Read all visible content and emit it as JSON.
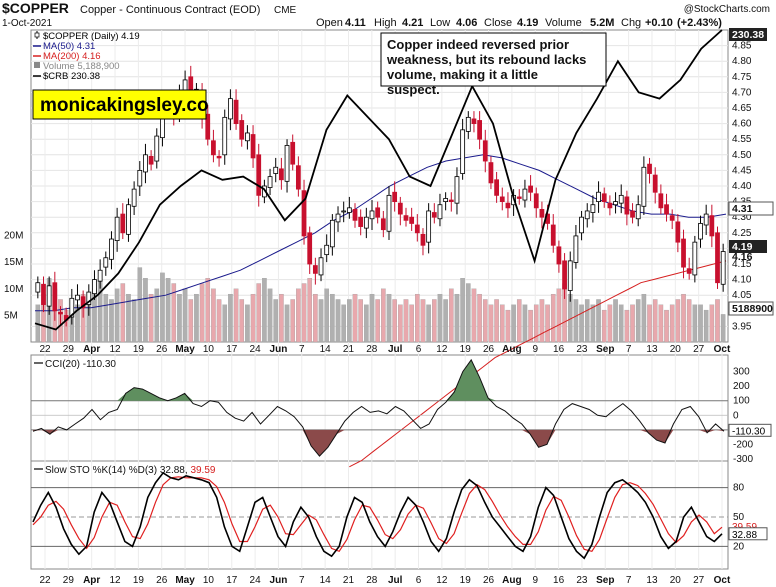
{
  "header": {
    "symbol": "$COPPER",
    "name": "Copper - Continuous Contract (EOD)",
    "exchange": "CME",
    "date": "1-Oct-2021",
    "watermark": "@StockCharts.com",
    "quote": {
      "open_label": "Open",
      "open": "4.11",
      "high_label": "High",
      "high": "4.21",
      "low_label": "Low",
      "low": "4.06",
      "close_label": "Close",
      "close": "4.19",
      "volume_label": "Volume",
      "volume": "5.2M",
      "chg_label": "Chg",
      "chg": "+0.10",
      "chg_pct": "(+2.43%)"
    }
  },
  "legend": [
    {
      "text": "$COPPER (Daily) 4.19",
      "color": "#000000",
      "marker": "candle"
    },
    {
      "text": "MA(50) 4.31",
      "color": "#1a1a8c",
      "marker": "line"
    },
    {
      "text": "MA(200) 4.16",
      "color": "#d62020",
      "marker": "line"
    },
    {
      "text": "Volume 5,188,900",
      "color": "#888888",
      "marker": "bar"
    },
    {
      "text": "$CRB 230.38",
      "color": "#000000",
      "marker": "line"
    }
  ],
  "brand_box": "monicakingsley.co",
  "annotation": "Copper indeed reversed prior weakness, but its rebound lacks volume, making it a little suspect.",
  "colors": {
    "up": "#ffffff",
    "down": "#c8102e",
    "ma50": "#1a1a8c",
    "ma200": "#d62020",
    "crb": "#000000",
    "vol_up": "#b0b0b0",
    "vol_down": "#e8a8ad",
    "cci_fill_pos": "#5f8f5f",
    "cci_fill_neg": "#8b4a4a",
    "sto_k": "#000000",
    "sto_d": "#e02020",
    "brand_bg": "#ffff00"
  },
  "x_labels": [
    "22",
    "29",
    "Apr",
    "12",
    "19",
    "26",
    "May",
    "10",
    "17",
    "24",
    "Jun",
    "7",
    "14",
    "21",
    "28",
    "Jul",
    "6",
    "12",
    "19",
    "26",
    "Aug",
    "9",
    "16",
    "23",
    "Sep",
    "7",
    "13",
    "20",
    "27",
    "Oct"
  ],
  "chart_data": [
    {
      "type": "candlestick",
      "title": "$COPPER (Daily) 4.19",
      "ylim": [
        3.9,
        4.9
      ],
      "y_ticks": [
        "3.95",
        "4.05",
        "4.10",
        "4.15",
        "4.20",
        "4.25",
        "4.30",
        "4.35",
        "4.40",
        "4.45",
        "4.50",
        "4.55",
        "4.60",
        "4.65",
        "4.70",
        "4.75",
        "4.80",
        "4.85"
      ],
      "badges": [
        {
          "value": "230.38",
          "style": "dark"
        },
        {
          "value": "4.31",
          "style": "box"
        },
        {
          "value": "4.19",
          "style": "dark"
        },
        {
          "value": "4.16",
          "style": "plain"
        },
        {
          "value": "5188900",
          "style": "box"
        }
      ],
      "left_volume_ticks": [
        "20M",
        "15M",
        "10M",
        "5M"
      ],
      "close": [
        4.09,
        4.02,
        4.08,
        4.0,
        3.99,
        3.97,
        4.04,
        4.05,
        4.01,
        4.06,
        4.1,
        4.13,
        4.17,
        4.23,
        4.3,
        4.25,
        4.34,
        4.39,
        4.45,
        4.5,
        4.47,
        4.56,
        4.66,
        4.67,
        4.63,
        4.7,
        4.74,
        4.66,
        4.71,
        4.62,
        4.55,
        4.5,
        4.49,
        4.62,
        4.68,
        4.6,
        4.55,
        4.57,
        4.49,
        4.37,
        4.4,
        4.43,
        4.46,
        4.42,
        4.53,
        4.47,
        4.39,
        4.24,
        4.15,
        4.12,
        4.17,
        4.21,
        4.29,
        4.31,
        4.32,
        4.33,
        4.29,
        4.27,
        4.3,
        4.32,
        4.3,
        4.26,
        4.37,
        4.35,
        4.31,
        4.29,
        4.28,
        4.25,
        4.21,
        4.32,
        4.3,
        4.34,
        4.36,
        4.35,
        4.43,
        4.58,
        4.62,
        4.6,
        4.55,
        4.48,
        4.41,
        4.37,
        4.35,
        4.33,
        4.37,
        4.36,
        4.39,
        4.38,
        4.33,
        4.3,
        4.28,
        4.21,
        4.15,
        4.07,
        4.16,
        4.24,
        4.3,
        4.32,
        4.34,
        4.38,
        4.35,
        4.33,
        4.35,
        4.37,
        4.31,
        4.3,
        4.34,
        4.46,
        4.44,
        4.38,
        4.33,
        4.31,
        4.29,
        4.22,
        4.14,
        4.12,
        4.22,
        4.28,
        4.31,
        4.24,
        4.09,
        4.19
      ],
      "volume_millions": [
        7,
        9,
        12,
        10,
        8,
        6,
        8,
        7,
        9,
        8,
        10,
        12,
        9,
        8,
        10,
        11,
        9,
        8,
        14,
        12,
        9,
        10,
        13,
        12,
        11,
        9,
        10,
        8,
        9,
        11,
        12,
        10,
        8,
        7,
        9,
        10,
        8,
        7,
        9,
        11,
        12,
        10,
        8,
        9,
        7,
        8,
        10,
        11,
        12,
        9,
        8,
        10,
        9,
        8,
        7,
        8,
        9,
        8,
        7,
        9,
        8,
        10,
        9,
        8,
        7,
        8,
        7,
        9,
        8,
        7,
        8,
        9,
        8,
        10,
        9,
        12,
        11,
        10,
        9,
        8,
        7,
        8,
        7,
        6,
        7,
        8,
        7,
        6,
        7,
        8,
        7,
        9,
        10,
        11,
        9,
        8,
        7,
        8,
        7,
        8,
        6,
        7,
        8,
        7,
        6,
        7,
        8,
        9,
        7,
        8,
        7,
        6,
        7,
        8,
        9,
        8,
        7,
        7,
        6,
        7,
        8,
        5.19
      ],
      "ma50": [
        4.0,
        4.0,
        4.01,
        4.01,
        4.02,
        4.03,
        4.04,
        4.05,
        4.07,
        4.09,
        4.11,
        4.13,
        4.16,
        4.19,
        4.22,
        4.25,
        4.29,
        4.32,
        4.36,
        4.4,
        4.43,
        4.46,
        4.48,
        4.49,
        4.5,
        4.49,
        4.47,
        4.45,
        4.42,
        4.39,
        4.36,
        4.34,
        4.32,
        4.31,
        4.31,
        4.3,
        4.3,
        4.31
      ],
      "ma200": [
        3.5,
        3.52,
        3.55,
        3.58,
        3.61,
        3.64,
        3.67,
        3.7,
        3.73,
        3.76,
        3.79,
        3.82,
        3.85,
        3.87,
        3.89,
        3.91,
        3.93,
        3.95,
        3.97,
        3.99,
        4.01,
        4.03,
        4.05,
        4.07,
        4.09,
        4.1,
        4.11,
        4.12,
        4.13,
        4.14,
        4.15,
        4.16
      ],
      "crb": [
        3.96,
        3.94,
        4.0,
        4.05,
        4.12,
        4.22,
        4.34,
        4.4,
        4.45,
        4.42,
        4.43,
        4.39,
        4.29,
        4.36,
        4.58,
        4.69,
        4.62,
        4.55,
        4.43,
        4.4,
        4.56,
        4.72,
        4.6,
        4.36,
        4.16,
        4.42,
        4.57,
        4.68,
        4.8,
        4.7,
        4.68,
        4.74,
        4.84,
        4.9
      ]
    },
    {
      "type": "line",
      "title": "CCI(20) -110.30",
      "ylim": [
        -300,
        400
      ],
      "y_ticks": [
        "300",
        "200",
        "100",
        "0",
        "-100",
        "-200",
        "-300"
      ],
      "reference_lines": [
        100,
        -100
      ],
      "badge": "-110.30",
      "values": [
        -110,
        -90,
        -130,
        -80,
        -100,
        -60,
        -20,
        40,
        -30,
        20,
        40,
        150,
        190,
        180,
        150,
        120,
        100,
        120,
        150,
        80,
        60,
        100,
        90,
        20,
        -20,
        -40,
        20,
        -60,
        0,
        60,
        30,
        -10,
        -80,
        -210,
        -280,
        -220,
        -130,
        -40,
        20,
        60,
        20,
        30,
        10,
        60,
        30,
        -30,
        -90,
        -60,
        40,
        90,
        160,
        300,
        380,
        260,
        120,
        60,
        30,
        -20,
        -60,
        -130,
        -220,
        -200,
        -60,
        40,
        80,
        60,
        40,
        0,
        -10,
        40,
        80,
        30,
        -40,
        -120,
        -170,
        -190,
        -60,
        40,
        60,
        -10,
        -120,
        -60,
        -110
      ]
    },
    {
      "type": "line",
      "title": "Slow STO %K(14) %D(3) 32.88, 39.59",
      "k_label": "32.88",
      "d_label": "39.59",
      "ylim": [
        0,
        100
      ],
      "y_ticks": [
        "80",
        "50",
        "20"
      ],
      "reference_lines": [
        80,
        50,
        20
      ],
      "k": [
        45,
        62,
        75,
        60,
        38,
        22,
        12,
        20,
        55,
        75,
        65,
        45,
        25,
        20,
        40,
        70,
        85,
        95,
        90,
        88,
        92,
        90,
        88,
        85,
        70,
        40,
        20,
        15,
        40,
        65,
        70,
        50,
        30,
        20,
        45,
        60,
        50,
        30,
        15,
        10,
        20,
        50,
        70,
        65,
        45,
        30,
        20,
        35,
        55,
        70,
        62,
        45,
        25,
        15,
        28,
        55,
        78,
        88,
        82,
        65,
        50,
        40,
        30,
        20,
        15,
        30,
        60,
        80,
        72,
        50,
        28,
        15,
        8,
        22,
        50,
        75,
        85,
        88,
        82,
        75,
        65,
        50,
        30,
        18,
        25,
        50,
        60,
        45,
        30,
        25,
        32.88
      ],
      "d": [
        42,
        50,
        62,
        66,
        58,
        42,
        28,
        18,
        29,
        50,
        65,
        62,
        45,
        30,
        28,
        43,
        65,
        83,
        90,
        91,
        90,
        90,
        90,
        88,
        81,
        65,
        43,
        25,
        25,
        40,
        58,
        62,
        50,
        33,
        32,
        42,
        52,
        47,
        32,
        18,
        15,
        27,
        47,
        62,
        60,
        47,
        32,
        28,
        37,
        53,
        62,
        59,
        44,
        28,
        23,
        33,
        54,
        74,
        83,
        78,
        66,
        52,
        40,
        30,
        22,
        22,
        35,
        57,
        71,
        67,
        50,
        31,
        17,
        15,
        27,
        49,
        70,
        83,
        85,
        82,
        74,
        63,
        48,
        33,
        24,
        31,
        45,
        52,
        45,
        33,
        39.59
      ]
    }
  ]
}
